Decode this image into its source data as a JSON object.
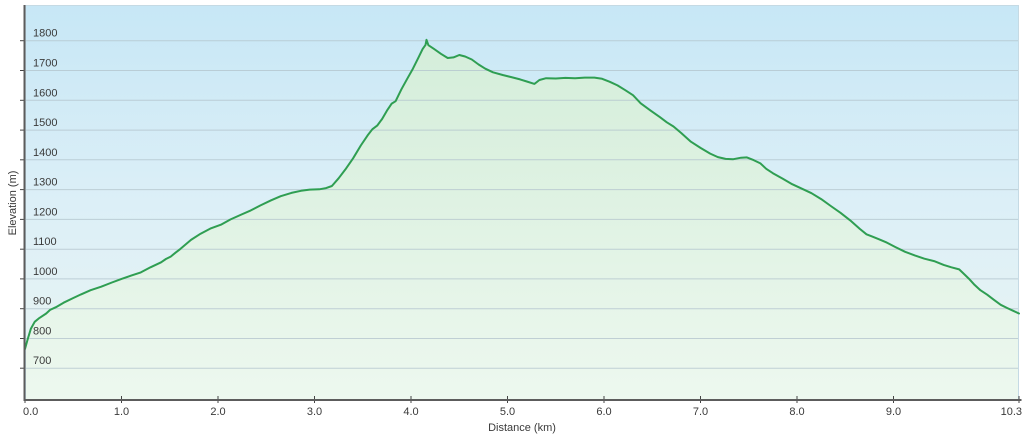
{
  "chart_data": {
    "type": "area",
    "title": "",
    "xlabel": "Distance  (km)",
    "ylabel": "Elevation (m)",
    "xlim": [
      0,
      10.3
    ],
    "ylim": [
      590,
      1920
    ],
    "grid": "horizontal",
    "legend": "none",
    "x_ticks": [
      {
        "v": 0,
        "label": "0.0"
      },
      {
        "v": 1,
        "label": "1.0"
      },
      {
        "v": 2,
        "label": "2.0"
      },
      {
        "v": 3,
        "label": "3.0"
      },
      {
        "v": 4,
        "label": "4.0"
      },
      {
        "v": 5,
        "label": "5.0"
      },
      {
        "v": 6,
        "label": "6.0"
      },
      {
        "v": 7,
        "label": "7.0"
      },
      {
        "v": 8,
        "label": "8.0"
      },
      {
        "v": 9,
        "label": "9.0"
      },
      {
        "v": 10.3,
        "label": "10.3"
      }
    ],
    "y_ticks": [
      700,
      800,
      900,
      1000,
      1100,
      1200,
      1300,
      1400,
      1500,
      1600,
      1700,
      1800
    ],
    "series": [
      {
        "name": "elevation-profile",
        "color": "#2f9e52",
        "points": [
          [
            0.0,
            765
          ],
          [
            0.03,
            800
          ],
          [
            0.06,
            832
          ],
          [
            0.1,
            856
          ],
          [
            0.15,
            869
          ],
          [
            0.22,
            884
          ],
          [
            0.26,
            896
          ],
          [
            0.32,
            905
          ],
          [
            0.4,
            920
          ],
          [
            0.5,
            936
          ],
          [
            0.58,
            948
          ],
          [
            0.68,
            962
          ],
          [
            0.79,
            974
          ],
          [
            0.9,
            988
          ],
          [
            1.0,
            1000
          ],
          [
            1.1,
            1011
          ],
          [
            1.2,
            1022
          ],
          [
            1.3,
            1039
          ],
          [
            1.41,
            1056
          ],
          [
            1.46,
            1067
          ],
          [
            1.51,
            1075
          ],
          [
            1.56,
            1088
          ],
          [
            1.61,
            1101
          ],
          [
            1.72,
            1131
          ],
          [
            1.82,
            1152
          ],
          [
            1.92,
            1169
          ],
          [
            2.03,
            1182
          ],
          [
            2.13,
            1200
          ],
          [
            2.24,
            1216
          ],
          [
            2.34,
            1230
          ],
          [
            2.44,
            1247
          ],
          [
            2.55,
            1264
          ],
          [
            2.65,
            1278
          ],
          [
            2.76,
            1289
          ],
          [
            2.86,
            1296
          ],
          [
            2.95,
            1300
          ],
          [
            3.05,
            1301
          ],
          [
            3.12,
            1305
          ],
          [
            3.18,
            1312
          ],
          [
            3.25,
            1338
          ],
          [
            3.32,
            1368
          ],
          [
            3.4,
            1405
          ],
          [
            3.48,
            1448
          ],
          [
            3.55,
            1482
          ],
          [
            3.6,
            1503
          ],
          [
            3.65,
            1515
          ],
          [
            3.7,
            1537
          ],
          [
            3.75,
            1565
          ],
          [
            3.8,
            1589
          ],
          [
            3.84,
            1597
          ],
          [
            3.9,
            1637
          ],
          [
            3.96,
            1672
          ],
          [
            4.02,
            1706
          ],
          [
            4.08,
            1745
          ],
          [
            4.12,
            1772
          ],
          [
            4.15,
            1786
          ],
          [
            4.16,
            1803
          ],
          [
            4.18,
            1785
          ],
          [
            4.24,
            1772
          ],
          [
            4.31,
            1756
          ],
          [
            4.38,
            1742
          ],
          [
            4.44,
            1744
          ],
          [
            4.5,
            1752
          ],
          [
            4.56,
            1747
          ],
          [
            4.63,
            1737
          ],
          [
            4.7,
            1720
          ],
          [
            4.77,
            1706
          ],
          [
            4.85,
            1694
          ],
          [
            4.95,
            1685
          ],
          [
            5.05,
            1677
          ],
          [
            5.13,
            1670
          ],
          [
            5.2,
            1663
          ],
          [
            5.28,
            1655
          ],
          [
            5.33,
            1668
          ],
          [
            5.4,
            1674
          ],
          [
            5.5,
            1673
          ],
          [
            5.6,
            1675
          ],
          [
            5.7,
            1674
          ],
          [
            5.8,
            1676
          ],
          [
            5.9,
            1676
          ],
          [
            5.98,
            1672
          ],
          [
            6.06,
            1662
          ],
          [
            6.14,
            1650
          ],
          [
            6.22,
            1634
          ],
          [
            6.3,
            1617
          ],
          [
            6.38,
            1590
          ],
          [
            6.48,
            1566
          ],
          [
            6.58,
            1543
          ],
          [
            6.65,
            1526
          ],
          [
            6.72,
            1512
          ],
          [
            6.8,
            1490
          ],
          [
            6.9,
            1461
          ],
          [
            7.0,
            1440
          ],
          [
            7.1,
            1421
          ],
          [
            7.18,
            1409
          ],
          [
            7.26,
            1403
          ],
          [
            7.34,
            1402
          ],
          [
            7.42,
            1407
          ],
          [
            7.48,
            1408
          ],
          [
            7.55,
            1399
          ],
          [
            7.62,
            1388
          ],
          [
            7.68,
            1370
          ],
          [
            7.75,
            1355
          ],
          [
            7.85,
            1337
          ],
          [
            7.95,
            1318
          ],
          [
            8.05,
            1303
          ],
          [
            8.15,
            1288
          ],
          [
            8.25,
            1268
          ],
          [
            8.35,
            1245
          ],
          [
            8.45,
            1222
          ],
          [
            8.55,
            1197
          ],
          [
            8.65,
            1168
          ],
          [
            8.72,
            1150
          ],
          [
            8.78,
            1142
          ],
          [
            8.85,
            1133
          ],
          [
            8.93,
            1122
          ],
          [
            9.02,
            1107
          ],
          [
            9.12,
            1091
          ],
          [
            9.22,
            1079
          ],
          [
            9.32,
            1068
          ],
          [
            9.42,
            1060
          ],
          [
            9.52,
            1047
          ],
          [
            9.6,
            1039
          ],
          [
            9.68,
            1032
          ],
          [
            9.72,
            1020
          ],
          [
            9.78,
            1001
          ],
          [
            9.84,
            980
          ],
          [
            9.9,
            962
          ],
          [
            9.97,
            947
          ],
          [
            10.04,
            930
          ],
          [
            10.11,
            913
          ],
          [
            10.18,
            902
          ],
          [
            10.24,
            893
          ],
          [
            10.3,
            884
          ]
        ]
      }
    ]
  },
  "colors": {
    "page_background": "#ffffff",
    "plot_bg_top": "#c7e7f6",
    "plot_bg_mid": "#dceff7",
    "plot_bg_bottom": "#eaf5f2",
    "area_top": "#d2edd8",
    "area_mid": "#dff2e3",
    "area_bottom": "#edf8ef",
    "line": "#2f9e52",
    "grid": "#b4c6ce",
    "axis": "#5c5c5c",
    "tick": "#444444",
    "label": "#3a3a3a",
    "border": "#c5dae4"
  }
}
